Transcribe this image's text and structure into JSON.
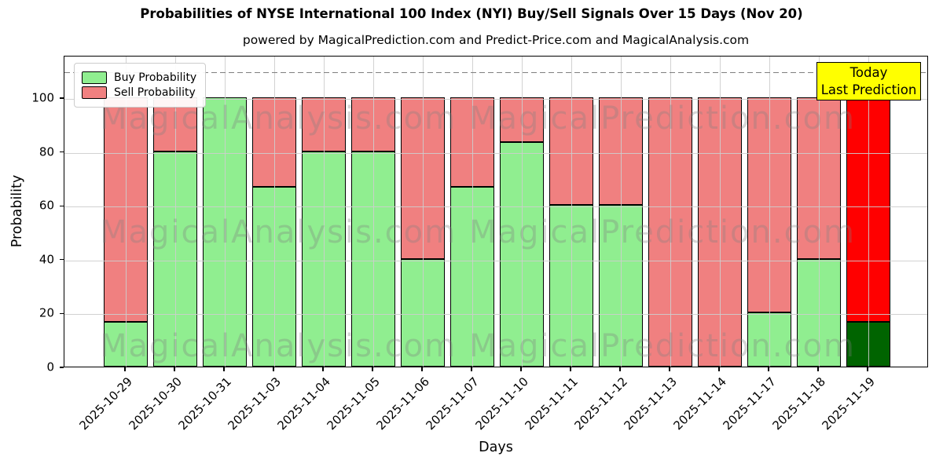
{
  "title": "Probabilities of NYSE International 100 Index (NYI) Buy/Sell Signals Over 15 Days (Nov 20)",
  "subtitle": "powered by MagicalPrediction.com and Predict-Price.com and MagicalAnalysis.com",
  "legend": {
    "buy_label": "Buy Probability",
    "sell_label": "Sell Probability"
  },
  "annotation_box": {
    "line1": "Today",
    "line2": "Last Prediction"
  },
  "watermarks": {
    "left": "MagicalAnalysis.com",
    "right": "MagicalPrediction.com"
  },
  "axes": {
    "xlabel": "Days",
    "ylabel": "Probability",
    "yticks": [
      0,
      20,
      40,
      60,
      80,
      100
    ]
  },
  "colors": {
    "buy": "#90ee90",
    "sell": "#f08080",
    "today_buy": "#006400",
    "today_sell": "#ff0000",
    "annotation_bg": "#ffff00",
    "grid": "rgba(205,205,205,0.9)",
    "dashed_line": "#7f7f7f",
    "watermark": "rgba(128,128,128,0.32)"
  },
  "chart_data": {
    "type": "bar",
    "stacked": true,
    "title": "Probabilities of NYSE International 100 Index (NYI) Buy/Sell Signals Over 15 Days (Nov 20)",
    "xlabel": "Days",
    "ylabel": "Probability",
    "ylim": [
      0,
      116
    ],
    "grid": true,
    "legend_position": "upper left",
    "dashed_line_y": 110,
    "highlight_last_bar": true,
    "categories": [
      "2025-10-29",
      "2025-10-30",
      "2025-10-31",
      "2025-11-03",
      "2025-11-04",
      "2025-11-05",
      "2025-11-06",
      "2025-11-07",
      "2025-11-10",
      "2025-11-11",
      "2025-11-12",
      "2025-11-13",
      "2025-11-14",
      "2025-11-17",
      "2025-11-18",
      "2025-11-19"
    ],
    "series": [
      {
        "name": "Buy Probability",
        "values": [
          16.67,
          80,
          100,
          66.67,
          80,
          80,
          40,
          66.67,
          83.33,
          60,
          60,
          0,
          0,
          20,
          40,
          16.67
        ]
      },
      {
        "name": "Sell Probability",
        "values": [
          83.33,
          20,
          0,
          33.33,
          20,
          20,
          60,
          33.33,
          16.67,
          40,
          40,
          100,
          100,
          80,
          60,
          83.33
        ]
      }
    ]
  }
}
